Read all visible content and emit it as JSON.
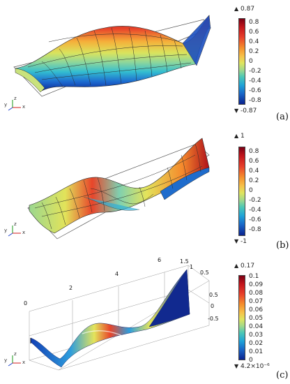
{
  "panels": [
    {
      "label": "(a)",
      "colorbar": {
        "max_label": "0.87",
        "min_label": "-0.87",
        "ticks": [
          "0.8",
          "0.6",
          "0.4",
          "0.2",
          "0",
          "-0.2",
          "-0.4",
          "-0.6",
          "-0.8"
        ]
      }
    },
    {
      "label": "(b)",
      "colorbar": {
        "max_label": "1",
        "min_label": "-1",
        "ticks": [
          "0.8",
          "0.6",
          "0.4",
          "0.2",
          "0",
          "-0.2",
          "-0.4",
          "-0.6",
          "-0.8"
        ]
      }
    },
    {
      "label": "(c)",
      "colorbar": {
        "max_label": "0.17",
        "min_label": "4.2×10⁻⁶",
        "ticks": [
          "0.1",
          "0.09",
          "0.08",
          "0.07",
          "0.06",
          "0.05",
          "0.04",
          "0.03",
          "0.02",
          "0.01",
          "0"
        ]
      },
      "axis_labels": {
        "x_ticks": [
          "0",
          "2",
          "4",
          "6"
        ],
        "x_end": "1.5",
        "y_end": "1",
        "z_ticks": [
          "0.5",
          "0.5",
          "0",
          "-0.5"
        ]
      }
    }
  ],
  "triad": {
    "x": "x",
    "y": "y",
    "z": "z"
  },
  "colors": {
    "frame": "#555555",
    "grid": "#2a2a2a",
    "hot": "#c4161c",
    "cold": "#0b238f",
    "mid": "#dfe55f"
  }
}
